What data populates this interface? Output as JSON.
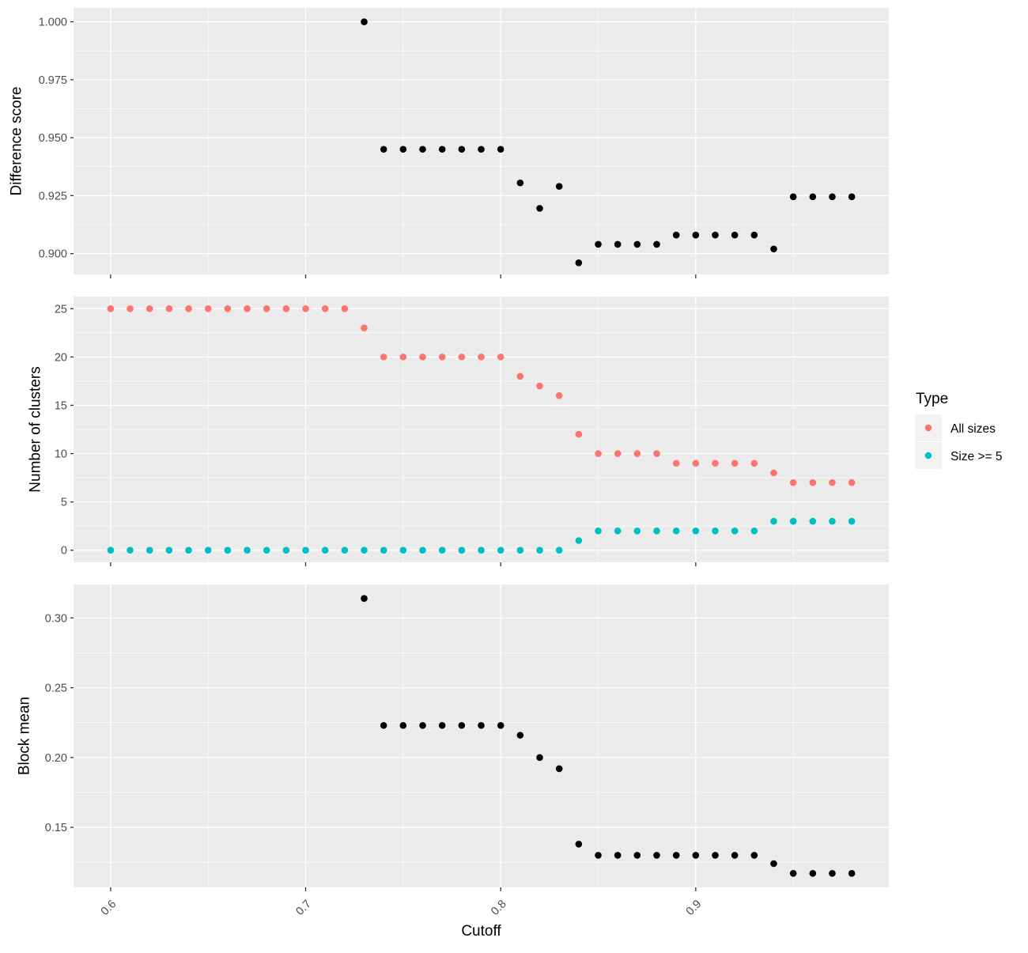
{
  "colors": {
    "panel_background": "#ebebeb",
    "grid": "#ffffff",
    "black_points": "#000000",
    "all_sizes": "#f8766d",
    "size_ge_5": "#00bfc4"
  },
  "chart_data": [
    {
      "type": "scatter",
      "panel": "Difference score",
      "xlabel": "Cutoff",
      "ylabel": "Difference score",
      "xlim": [
        0.581,
        0.999
      ],
      "ylim": [
        0.891,
        1.006
      ],
      "x_ticks": [
        0.6,
        0.7,
        0.8,
        0.9
      ],
      "x_tick_labels": [
        "0.6",
        "0.7",
        "0.8",
        "0.9"
      ],
      "y_ticks": [
        0.9,
        0.925,
        0.95,
        0.975,
        1.0
      ],
      "y_tick_labels": [
        "0.900",
        "0.925",
        "0.950",
        "0.975",
        "1.000"
      ],
      "grid": true,
      "series": [
        {
          "color": "#000000",
          "x": [
            0.73,
            0.74,
            0.75,
            0.76,
            0.77,
            0.78,
            0.79,
            0.8,
            0.81,
            0.82,
            0.83,
            0.84,
            0.85,
            0.86,
            0.87,
            0.88,
            0.89,
            0.9,
            0.91,
            0.92,
            0.93,
            0.94,
            0.95,
            0.96,
            0.97,
            0.98
          ],
          "y": [
            1.0,
            0.945,
            0.945,
            0.945,
            0.945,
            0.945,
            0.945,
            0.945,
            0.9305,
            0.9195,
            0.929,
            0.896,
            0.904,
            0.904,
            0.904,
            0.904,
            0.908,
            0.908,
            0.908,
            0.908,
            0.908,
            0.902,
            0.9245,
            0.9245,
            0.9245,
            0.9245
          ]
        }
      ]
    },
    {
      "type": "scatter",
      "panel": "Number of clusters",
      "xlabel": "Cutoff",
      "ylabel": "Number of clusters",
      "xlim": [
        0.581,
        0.999
      ],
      "ylim": [
        -1.25,
        26.25
      ],
      "x_ticks": [
        0.6,
        0.7,
        0.8,
        0.9
      ],
      "x_tick_labels": [
        "0.6",
        "0.7",
        "0.8",
        "0.9"
      ],
      "y_ticks": [
        0,
        5,
        10,
        15,
        20,
        25
      ],
      "y_tick_labels": [
        "0",
        "5",
        "10",
        "15",
        "20",
        "25"
      ],
      "grid": true,
      "legend": {
        "title": "Type",
        "position": "right",
        "entries": [
          {
            "label": "All sizes",
            "color": "#f8766d"
          },
          {
            "label": "Size >= 5",
            "color": "#00bfc4"
          }
        ]
      },
      "series": [
        {
          "name": "All sizes",
          "color": "#f8766d",
          "x": [
            0.6,
            0.61,
            0.62,
            0.63,
            0.64,
            0.65,
            0.66,
            0.67,
            0.68,
            0.69,
            0.7,
            0.71,
            0.72,
            0.73,
            0.74,
            0.75,
            0.76,
            0.77,
            0.78,
            0.79,
            0.8,
            0.81,
            0.82,
            0.83,
            0.84,
            0.85,
            0.86,
            0.87,
            0.88,
            0.89,
            0.9,
            0.91,
            0.92,
            0.93,
            0.94,
            0.95,
            0.96,
            0.97,
            0.98
          ],
          "y": [
            25,
            25,
            25,
            25,
            25,
            25,
            25,
            25,
            25,
            25,
            25,
            25,
            25,
            23,
            20,
            20,
            20,
            20,
            20,
            20,
            20,
            18,
            17,
            16,
            12,
            10,
            10,
            10,
            10,
            9,
            9,
            9,
            9,
            9,
            8,
            7,
            7,
            7,
            7
          ]
        },
        {
          "name": "Size >= 5",
          "color": "#00bfc4",
          "x": [
            0.6,
            0.61,
            0.62,
            0.63,
            0.64,
            0.65,
            0.66,
            0.67,
            0.68,
            0.69,
            0.7,
            0.71,
            0.72,
            0.73,
            0.74,
            0.75,
            0.76,
            0.77,
            0.78,
            0.79,
            0.8,
            0.81,
            0.82,
            0.83,
            0.84,
            0.85,
            0.86,
            0.87,
            0.88,
            0.89,
            0.9,
            0.91,
            0.92,
            0.93,
            0.94,
            0.95,
            0.96,
            0.97,
            0.98
          ],
          "y": [
            0,
            0,
            0,
            0,
            0,
            0,
            0,
            0,
            0,
            0,
            0,
            0,
            0,
            0,
            0,
            0,
            0,
            0,
            0,
            0,
            0,
            0,
            0,
            0,
            1,
            2,
            2,
            2,
            2,
            2,
            2,
            2,
            2,
            2,
            3,
            3,
            3,
            3,
            3
          ]
        }
      ]
    },
    {
      "type": "scatter",
      "panel": "Block mean",
      "xlabel": "Cutoff",
      "ylabel": "Block mean",
      "xlim": [
        0.581,
        0.999
      ],
      "ylim": [
        0.107,
        0.324
      ],
      "x_ticks": [
        0.6,
        0.7,
        0.8,
        0.9
      ],
      "x_tick_labels": [
        "0.6",
        "0.7",
        "0.8",
        "0.9"
      ],
      "y_ticks": [
        0.15,
        0.2,
        0.25,
        0.3
      ],
      "y_tick_labels": [
        "0.15",
        "0.20",
        "0.25",
        "0.30"
      ],
      "grid": true,
      "series": [
        {
          "color": "#000000",
          "x": [
            0.73,
            0.74,
            0.75,
            0.76,
            0.77,
            0.78,
            0.79,
            0.8,
            0.81,
            0.82,
            0.83,
            0.84,
            0.85,
            0.86,
            0.87,
            0.88,
            0.89,
            0.9,
            0.91,
            0.92,
            0.93,
            0.94,
            0.95,
            0.96,
            0.97,
            0.98
          ],
          "y": [
            0.314,
            0.223,
            0.223,
            0.223,
            0.223,
            0.223,
            0.223,
            0.223,
            0.216,
            0.2,
            0.192,
            0.138,
            0.13,
            0.13,
            0.13,
            0.13,
            0.13,
            0.13,
            0.13,
            0.13,
            0.13,
            0.124,
            0.117,
            0.117,
            0.117,
            0.117
          ]
        }
      ]
    }
  ]
}
